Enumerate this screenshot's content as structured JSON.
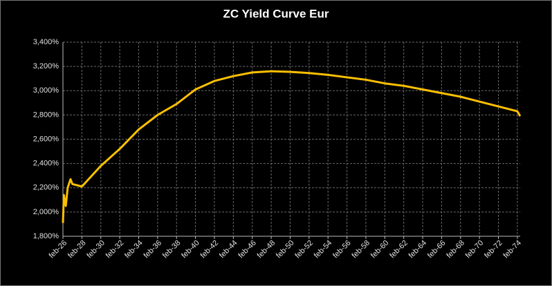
{
  "chart_data": {
    "type": "line",
    "title": "ZC Yield Curve Eur",
    "x": [
      26,
      26.1,
      26.3,
      26.5,
      26.8,
      27,
      28,
      30,
      32,
      34,
      36,
      38,
      40,
      42,
      44,
      46,
      48,
      50,
      52,
      54,
      56,
      58,
      60,
      62,
      64,
      66,
      68,
      70,
      72,
      74,
      74.3
    ],
    "series": [
      {
        "name": "ZC Yield Curve Eur",
        "color": "#ffc000",
        "values": [
          1.91,
          2.14,
          2.05,
          2.2,
          2.27,
          2.23,
          2.21,
          2.38,
          2.52,
          2.68,
          2.8,
          2.89,
          3.01,
          3.08,
          3.12,
          3.15,
          3.16,
          3.155,
          3.145,
          3.13,
          3.11,
          3.09,
          3.06,
          3.04,
          3.01,
          2.98,
          2.95,
          2.91,
          2.87,
          2.83,
          2.79
        ]
      }
    ],
    "xlim": [
      26,
      74.3
    ],
    "xticks": [
      {
        "value": 26,
        "label": "feb-26"
      },
      {
        "value": 28,
        "label": "feb-28"
      },
      {
        "value": 30,
        "label": "feb-30"
      },
      {
        "value": 32,
        "label": "feb-32"
      },
      {
        "value": 34,
        "label": "feb-34"
      },
      {
        "value": 36,
        "label": "feb-36"
      },
      {
        "value": 38,
        "label": "feb-38"
      },
      {
        "value": 40,
        "label": "feb-40"
      },
      {
        "value": 42,
        "label": "feb-42"
      },
      {
        "value": 44,
        "label": "feb-44"
      },
      {
        "value": 46,
        "label": "feb-46"
      },
      {
        "value": 48,
        "label": "feb-48"
      },
      {
        "value": 50,
        "label": "feb-50"
      },
      {
        "value": 52,
        "label": "feb-52"
      },
      {
        "value": 54,
        "label": "feb-54"
      },
      {
        "value": 56,
        "label": "feb-56"
      },
      {
        "value": 58,
        "label": "feb-58"
      },
      {
        "value": 60,
        "label": "feb-60"
      },
      {
        "value": 62,
        "label": "feb-62"
      },
      {
        "value": 64,
        "label": "feb-64"
      },
      {
        "value": 66,
        "label": "feb-66"
      },
      {
        "value": 68,
        "label": "feb-68"
      },
      {
        "value": 70,
        "label": "feb-70"
      },
      {
        "value": 72,
        "label": "feb-72"
      },
      {
        "value": 74,
        "label": "feb-74"
      }
    ],
    "ylim": [
      1.8,
      3.4
    ],
    "yticks": [
      {
        "value": 1.8,
        "label": "1,800%"
      },
      {
        "value": 2.0,
        "label": "2,000%"
      },
      {
        "value": 2.2,
        "label": "2,200%"
      },
      {
        "value": 2.4,
        "label": "2,400%"
      },
      {
        "value": 2.6,
        "label": "2,600%"
      },
      {
        "value": 2.8,
        "label": "2,800%"
      },
      {
        "value": 3.0,
        "label": "3,000%"
      },
      {
        "value": 3.2,
        "label": "3,200%"
      },
      {
        "value": 3.4,
        "label": "3,400%"
      }
    ],
    "grid": true
  }
}
